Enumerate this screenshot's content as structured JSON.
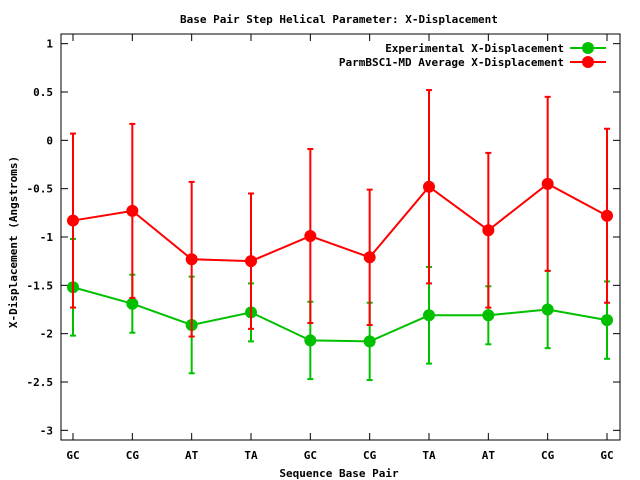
{
  "chart_data": {
    "type": "line",
    "title": "Base Pair Step Helical Parameter: X-Displacement",
    "xlabel": "Sequence Base Pair",
    "ylabel": "X-Displacement (Angstroms)",
    "categories": [
      "GC",
      "CG",
      "AT",
      "TA",
      "GC",
      "CG",
      "TA",
      "AT",
      "CG",
      "GC"
    ],
    "ylim": [
      -3.1,
      1.1
    ],
    "yticks": [
      1,
      0.5,
      0,
      -0.5,
      -1,
      -1.5,
      -2,
      -2.5,
      -3
    ],
    "ytick_labels": [
      "1",
      "0.5",
      "0",
      "-0.5",
      "-1",
      "-1.5",
      "-2",
      "-2.5",
      "-3"
    ],
    "grid": false,
    "legend_position": "top-right",
    "series": [
      {
        "name": "Experimental X-Displacement",
        "color": "#00c000",
        "values": [
          -1.52,
          -1.69,
          -1.91,
          -1.78,
          -2.07,
          -2.08,
          -1.81,
          -1.81,
          -1.75,
          -1.86
        ],
        "errors": [
          0.5,
          0.3,
          0.5,
          0.3,
          0.4,
          0.4,
          0.5,
          0.3,
          0.4,
          0.4
        ]
      },
      {
        "name": "ParmBSC1-MD Average X-Displacement",
        "color": "#ff0000",
        "values": [
          -0.83,
          -0.73,
          -1.23,
          -1.25,
          -0.99,
          -1.21,
          -0.48,
          -0.93,
          -0.45,
          -0.78
        ],
        "errors": [
          0.9,
          0.9,
          0.8,
          0.7,
          0.9,
          0.7,
          1.0,
          0.8,
          0.9,
          0.9
        ]
      }
    ]
  }
}
